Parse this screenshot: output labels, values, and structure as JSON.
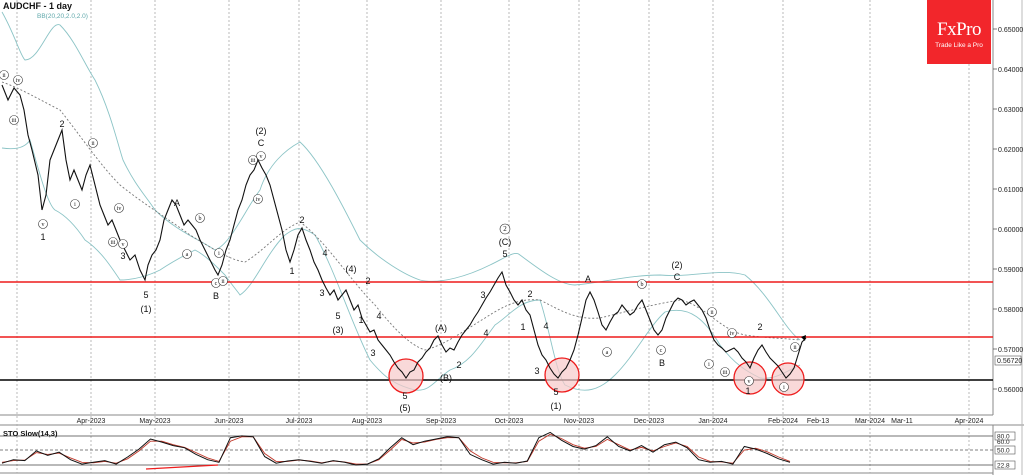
{
  "header": {
    "title": "AUDCHF - 1 day",
    "indicator": "BB(20,20,2.0,2.0)"
  },
  "logo": {
    "brand": "FxPro",
    "tagline": "Trade Like a Pro",
    "color": "#f2262b"
  },
  "indicator_panel": {
    "label": "STO Slow(14,3)",
    "levels": [
      "80.0",
      "50.0",
      "22.8"
    ],
    "overlapped_label": "60.0"
  },
  "current_price": "0.56720",
  "colors": {
    "resistance": "#ee1c1c",
    "support": "#000000",
    "bollinger": "#8cc4c6",
    "circle_fill": "#f7c9c9",
    "circle_stroke": "#ee1c1c"
  },
  "chart_data": {
    "type": "candlestick",
    "title": "AUDCHF - 1 day",
    "xlabel": "",
    "ylabel": "",
    "ylim": [
      0.555,
      0.657
    ],
    "y_ticks": [
      "0.65000",
      "0.64000",
      "0.63000",
      "0.62000",
      "0.61000",
      "0.60000",
      "0.59000",
      "0.58000",
      "0.57000",
      "0.56000"
    ],
    "x_ticks": [
      "Apr-2023",
      "May-2023",
      "Jun-2023",
      "Jul-2023",
      "Aug-2023",
      "Sep-2023",
      "Oct-2023",
      "Nov-2023",
      "Dec-2023",
      "Jan-2024",
      "Feb-2024",
      "Feb-13",
      "Mar-2024",
      "Mar-11",
      "Apr-2024"
    ],
    "grid": true,
    "horizontal_lines": [
      {
        "level": 0.5868,
        "color": "red",
        "role": "resistance"
      },
      {
        "level": 0.573,
        "color": "red",
        "role": "resistance"
      },
      {
        "level": 0.5622,
        "color": "black",
        "role": "support"
      }
    ],
    "approx_close_path": {
      "x": [
        "Mar-2023",
        "Apr-2023",
        "mid-Apr",
        "May-2023",
        "mid-May",
        "Jun-2023",
        "mid-Jun",
        "Jul-2023",
        "mid-Jul",
        "Aug-2023",
        "mid-Aug",
        "Sep-2023",
        "late-Sep",
        "Oct-2023",
        "mid-Oct",
        "Nov-2023",
        "mid-Nov",
        "Dec-2023",
        "mid-Dec",
        "Jan-2024",
        "mid-Jan",
        "Feb-2024"
      ],
      "values": [
        0.634,
        0.614,
        0.608,
        0.6,
        0.589,
        0.592,
        0.616,
        0.603,
        0.591,
        0.579,
        0.565,
        0.57,
        0.585,
        0.593,
        0.566,
        0.583,
        0.577,
        0.582,
        0.578,
        0.571,
        0.568,
        0.5672
      ]
    },
    "wave_labels": [
      "ii",
      "iv",
      "iii",
      "i",
      "v",
      "1",
      "2",
      "ii",
      "iii",
      "iv",
      "v",
      "4",
      "3",
      "5",
      "(1)",
      "A",
      "b",
      "a",
      "c",
      "ii",
      "i",
      "B",
      "(2)",
      "C",
      "iii",
      "v",
      "iv",
      "1",
      "2",
      "4",
      "(4)",
      "2",
      "3",
      "5",
      "(3)",
      "1",
      "4",
      "3",
      "5",
      "(5)",
      "(A)",
      "(B)",
      "1",
      "2",
      "3",
      "4",
      "5",
      "(C)",
      "②",
      "2",
      "1",
      "4",
      "3",
      "5",
      "(1)",
      "A",
      "a",
      "b",
      "c",
      "B",
      "(2)",
      "C",
      "ii",
      "iv",
      "i",
      "iii",
      "v",
      "2",
      "1",
      "i",
      "ii"
    ],
    "indicator": {
      "name": "STO Slow(14,3)",
      "levels": [
        80,
        50,
        20
      ],
      "last_value": 22.8,
      "series": [
        {
          "name": "%K",
          "values": [
            20,
            28,
            26,
            48,
            38,
            45,
            28,
            18,
            22,
            26,
            18,
            34,
            52,
            75,
            68,
            60,
            55,
            40,
            28,
            22,
            78,
            82,
            80,
            35,
            20,
            25,
            28,
            24,
            20,
            26,
            22,
            16,
            18,
            30,
            55,
            78,
            62,
            70,
            75,
            80,
            78,
            40,
            28,
            18,
            22,
            20,
            25,
            78,
            90,
            72,
            58,
            52,
            60,
            80,
            58,
            48,
            60,
            45,
            62,
            68,
            55,
            28,
            22,
            24,
            18,
            58,
            52,
            42,
            30,
            22
          ]
        },
        {
          "name": "%D",
          "values": [
            22,
            26,
            27,
            44,
            40,
            43,
            32,
            22,
            21,
            24,
            20,
            30,
            48,
            70,
            70,
            62,
            56,
            44,
            32,
            24,
            70,
            80,
            80,
            42,
            24,
            24,
            27,
            25,
            21,
            25,
            23,
            18,
            18,
            28,
            50,
            74,
            66,
            68,
            74,
            78,
            78,
            48,
            32,
            22,
            21,
            21,
            24,
            70,
            86,
            76,
            62,
            54,
            58,
            74,
            62,
            50,
            56,
            48,
            58,
            66,
            58,
            34,
            24,
            23,
            20,
            50,
            54,
            46,
            34,
            24
          ]
        }
      ]
    }
  }
}
